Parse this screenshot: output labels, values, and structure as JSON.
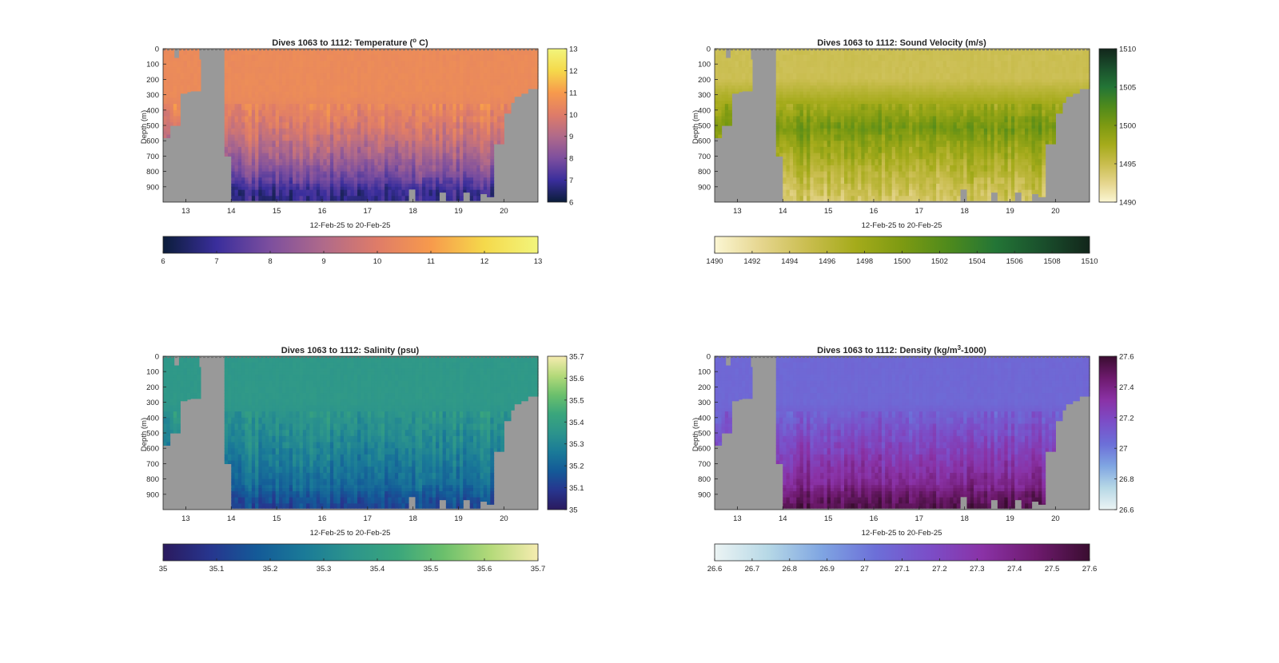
{
  "figure": {
    "background": "#ffffff",
    "nodata_color": "#999999"
  },
  "chart_data": [
    {
      "type": "heatmap",
      "variable": "temperature",
      "title_pre": "Dives 1063 to 1112: Temperature (",
      "title_sup": "o",
      "title_post": " C)",
      "xlabel": "12-Feb-25 to 20-Feb-25",
      "ylabel": "Depth (m)",
      "xlim": [
        12.5,
        20.75
      ],
      "xticks": [
        "13",
        "14",
        "15",
        "16",
        "17",
        "18",
        "19",
        "20"
      ],
      "ylim": [
        0,
        1000
      ],
      "yticks": [
        "0",
        "100",
        "200",
        "300",
        "400",
        "500",
        "600",
        "700",
        "800",
        "900"
      ],
      "colormap": [
        "#0b1d3a",
        "#3a2e9c",
        "#7d4f9e",
        "#b06a8a",
        "#df7c68",
        "#f79a4c",
        "#f5d94b",
        "#f2f57c"
      ],
      "clim": [
        6,
        13
      ],
      "colorbar_ticks": [
        "6",
        "7",
        "8",
        "9",
        "10",
        "11",
        "12",
        "13"
      ],
      "hbar_ticks": [
        "6",
        "7",
        "8",
        "9",
        "10",
        "11",
        "12",
        "13"
      ],
      "surface_value": 10.5,
      "deep_value": 7.2,
      "bottom_value": 6.8,
      "profile": {
        "start_m": 280,
        "power": 1.6
      }
    },
    {
      "type": "heatmap",
      "variable": "sound_velocity",
      "title_pre": "Dives 1063 to 1112: Sound Velocity (m/s)",
      "title_sup": "",
      "title_post": "",
      "xlabel": "12-Feb-25 to 20-Feb-25",
      "ylabel": "Depth (m)",
      "xlim": [
        12.5,
        20.75
      ],
      "xticks": [
        "13",
        "14",
        "15",
        "16",
        "17",
        "18",
        "19",
        "20"
      ],
      "ylim": [
        0,
        1000
      ],
      "yticks": [
        "0",
        "100",
        "200",
        "300",
        "400",
        "500",
        "600",
        "700",
        "800",
        "900"
      ],
      "colormap": [
        "#fbf6d3",
        "#e5d58d",
        "#c9bd4e",
        "#a5ab1b",
        "#7d9a12",
        "#4e8a1c",
        "#237536",
        "#1a4f2c",
        "#12261b"
      ],
      "clim": [
        1490,
        1510
      ],
      "colorbar_ticks": [
        "1490",
        "1495",
        "1500",
        "1505",
        "1510"
      ],
      "hbar_ticks": [
        "1490",
        "1492",
        "1494",
        "1496",
        "1498",
        "1500",
        "1502",
        "1504",
        "1506",
        "1508",
        "1510"
      ],
      "surface_value": 1494.8,
      "deep_value": 1500.6,
      "bottom_value": 1494.0,
      "profile": {
        "start_m": 200,
        "power": 0.9,
        "mid_m": 520
      }
    },
    {
      "type": "heatmap",
      "variable": "salinity",
      "title_pre": "Dives 1063 to 1112: Salinity (psu)",
      "title_sup": "",
      "title_post": "",
      "xlabel": "12-Feb-25 to 20-Feb-25",
      "ylabel": "Depth (m)",
      "xlim": [
        12.5,
        20.75
      ],
      "xticks": [
        "13",
        "14",
        "15",
        "16",
        "17",
        "18",
        "19",
        "20"
      ],
      "ylim": [
        0,
        1000
      ],
      "yticks": [
        "0",
        "100",
        "200",
        "300",
        "400",
        "500",
        "600",
        "700",
        "800",
        "900"
      ],
      "colormap": [
        "#2a1a5e",
        "#27358e",
        "#145a98",
        "#1a7a98",
        "#2c948c",
        "#3aa67c",
        "#6cc06c",
        "#b5da7a",
        "#f6ecb0"
      ],
      "clim": [
        35,
        35.7
      ],
      "colorbar_ticks": [
        "35",
        "35.1",
        "35.2",
        "35.3",
        "35.4",
        "35.5",
        "35.6",
        "35.7"
      ],
      "hbar_ticks": [
        "35",
        "35.1",
        "35.2",
        "35.3",
        "35.4",
        "35.5",
        "35.6",
        "35.7"
      ],
      "surface_value": 35.37,
      "deep_value": 35.2,
      "bottom_value": 35.12,
      "profile": {
        "start_m": 280,
        "power": 1.3
      }
    },
    {
      "type": "heatmap",
      "variable": "density",
      "title_pre": "Dives 1063 to 1112: Density (kg/m",
      "title_sup": "3",
      "title_post": "-1000)",
      "xlabel": "12-Feb-25 to 20-Feb-25",
      "ylabel": "Depth (m)",
      "xlim": [
        12.5,
        20.75
      ],
      "xticks": [
        "13",
        "14",
        "15",
        "16",
        "17",
        "18",
        "19",
        "20"
      ],
      "ylim": [
        0,
        1000
      ],
      "yticks": [
        "0",
        "100",
        "200",
        "300",
        "400",
        "500",
        "600",
        "700",
        "800",
        "900"
      ],
      "colormap": [
        "#ecf4f4",
        "#b6d8e6",
        "#7fa5e2",
        "#6c6fd8",
        "#7b4ec8",
        "#8a32a6",
        "#6e1a6e",
        "#3a0d30"
      ],
      "clim": [
        26.6,
        27.6
      ],
      "colorbar_ticks": [
        "26.6",
        "26.8",
        "27",
        "27.2",
        "27.4",
        "27.6"
      ],
      "hbar_ticks": [
        "26.6",
        "26.7",
        "26.8",
        "26.9",
        "27",
        "27.1",
        "27.2",
        "27.3",
        "27.4",
        "27.5",
        "27.6"
      ],
      "surface_value": 27.06,
      "deep_value": 27.42,
      "bottom_value": 27.55,
      "profile": {
        "start_m": 300,
        "power": 1.1
      }
    }
  ],
  "coverage": {
    "profiles": [
      [
        12.5,
        12.68,
        580
      ],
      [
        12.68,
        12.85,
        500
      ],
      [
        12.85,
        13.0,
        290
      ],
      [
        13.0,
        13.12,
        280
      ],
      [
        13.12,
        13.3,
        275
      ],
      [
        13.3,
        13.5,
        0
      ],
      [
        13.5,
        13.7,
        0
      ],
      [
        13.7,
        13.85,
        0
      ],
      [
        13.85,
        14.0,
        700
      ],
      [
        14.0,
        17.9,
        990
      ],
      [
        17.9,
        18.05,
        915
      ],
      [
        18.05,
        18.6,
        990
      ],
      [
        18.6,
        18.75,
        935
      ],
      [
        18.75,
        19.1,
        990
      ],
      [
        19.1,
        19.22,
        935
      ],
      [
        19.22,
        19.5,
        990
      ],
      [
        19.5,
        19.62,
        945
      ],
      [
        19.62,
        19.8,
        965
      ],
      [
        19.8,
        19.98,
        620
      ],
      [
        19.98,
        20.12,
        420
      ],
      [
        20.12,
        20.25,
        350
      ],
      [
        20.25,
        20.4,
        310
      ],
      [
        20.4,
        20.55,
        290
      ],
      [
        20.55,
        20.75,
        260
      ]
    ],
    "gaps": [
      [
        12.75,
        12.85,
        0,
        60
      ],
      [
        13.3,
        13.6,
        0,
        70
      ],
      [
        13.6,
        13.83,
        0,
        1000
      ]
    ]
  }
}
